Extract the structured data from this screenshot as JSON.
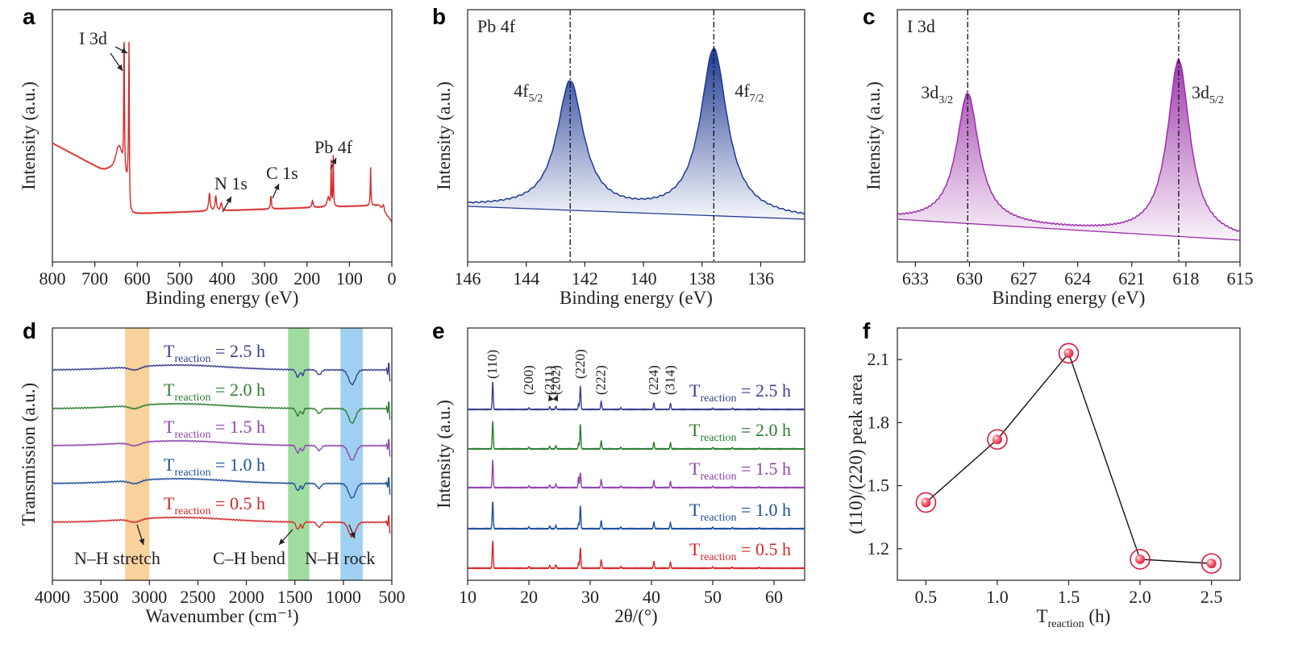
{
  "chart_data": [
    {
      "panel": "a",
      "type": "line",
      "xlabel": "Binding energy (eV)",
      "ylabel": "Intensity (a.u.)",
      "xlim": [
        800,
        0
      ],
      "x_ticks": [
        800,
        700,
        600,
        500,
        400,
        300,
        200,
        100,
        0
      ],
      "color": "#d62728",
      "annotations": [
        "I 3d",
        "N 1s",
        "C 1s",
        "Pb 4f"
      ],
      "peaks": [
        {
          "name": "I 3d",
          "x": [
            631,
            619
          ]
        },
        {
          "name": "N 1s",
          "x": 402
        },
        {
          "name": "C 1s",
          "x": 285
        },
        {
          "name": "Pb 4f",
          "x": [
            143,
            138
          ]
        }
      ]
    },
    {
      "panel": "b",
      "type": "line",
      "title": "Pb 4f",
      "xlabel": "Binding energy (eV)",
      "ylabel": "Intensity (a.u.)",
      "xlim": [
        146,
        134.5
      ],
      "x_ticks": [
        146,
        144,
        142,
        140,
        138,
        136
      ],
      "color": "#1f3a93",
      "peaks": [
        {
          "label_main": "4f",
          "label_sub": "5/2",
          "x": 142.5,
          "rel_height": 0.74
        },
        {
          "label_main": "4f",
          "label_sub": "7/2",
          "x": 137.6,
          "rel_height": 0.96
        }
      ]
    },
    {
      "panel": "c",
      "type": "line",
      "title": "I 3d",
      "xlabel": "Binding energy (eV)",
      "ylabel": "Intensity (a.u.)",
      "xlim": [
        634,
        615
      ],
      "x_ticks": [
        633,
        630,
        627,
        624,
        621,
        618,
        615
      ],
      "color": "#9b30a8",
      "peaks": [
        {
          "label_main": "3d",
          "label_sub": "3/2",
          "x": 630.1,
          "rel_height": 0.7
        },
        {
          "label_main": "3d",
          "label_sub": "5/2",
          "x": 618.4,
          "rel_height": 0.95
        }
      ]
    },
    {
      "panel": "d",
      "type": "line",
      "xlabel": "Wavenumber (cm⁻¹)",
      "ylabel": "Transmission (a.u.)",
      "xlim": [
        4000,
        500
      ],
      "x_ticks": [
        4000,
        3500,
        3000,
        2500,
        2000,
        1500,
        1000,
        500
      ],
      "bands": [
        {
          "name": "N–H stretch",
          "range": [
            3250,
            3000
          ],
          "color": "#f7c98a"
        },
        {
          "name": "C–H bend",
          "range": [
            1570,
            1350
          ],
          "color": "#8fd68f"
        },
        {
          "name": "N–H rock",
          "range": [
            1030,
            800
          ],
          "color": "#8fc8ee"
        }
      ],
      "series": [
        {
          "label_main": "T",
          "label_sub": "reaction",
          "label_value": " = 2.5 h",
          "color": "#3a3f8f"
        },
        {
          "label_main": "T",
          "label_sub": "reaction",
          "label_value": " = 2.0 h",
          "color": "#2e7d32"
        },
        {
          "label_main": "T",
          "label_sub": "reaction",
          "label_value": " = 1.5 h",
          "color": "#8e44ad"
        },
        {
          "label_main": "T",
          "label_sub": "reaction",
          "label_value": " = 1.0 h",
          "color": "#1f4e9c"
        },
        {
          "label_main": "T",
          "label_sub": "reaction",
          "label_value": " = 0.5 h",
          "color": "#d62728"
        }
      ]
    },
    {
      "panel": "e",
      "type": "line",
      "xlabel": "2θ/(°)",
      "ylabel": "Intensity (a.u.)",
      "xlim": [
        10,
        65
      ],
      "x_ticks": [
        10,
        20,
        30,
        40,
        50,
        60
      ],
      "hkl_labels": [
        {
          "label": "(110)",
          "x": 14.1
        },
        {
          "label": "(200)",
          "x": 20.0
        },
        {
          "label": "(211)",
          "x": 23.4
        },
        {
          "label": "(202)",
          "x": 24.4
        },
        {
          "label": "(220)",
          "x": 28.4
        },
        {
          "label": "(222)",
          "x": 31.8
        },
        {
          "label": "(224)",
          "x": 40.4
        },
        {
          "label": "(314)",
          "x": 43.1
        }
      ],
      "series": [
        {
          "label_main": "T",
          "label_sub": "reaction",
          "label_value": " = 2.5 h",
          "color": "#3a3f8f",
          "i110": 1.0,
          "i220": 0.85
        },
        {
          "label_main": "T",
          "label_sub": "reaction",
          "label_value": " = 2.0 h",
          "color": "#2e7d32",
          "i110": 1.0,
          "i220": 0.9
        },
        {
          "label_main": "T",
          "label_sub": "reaction",
          "label_value": " = 1.5 h",
          "color": "#8e44ad",
          "i110": 1.0,
          "i220": 0.55
        },
        {
          "label_main": "T",
          "label_sub": "reaction",
          "label_value": " = 1.0 h",
          "color": "#1f4e9c",
          "i110": 1.0,
          "i220": 0.85
        },
        {
          "label_main": "T",
          "label_sub": "reaction",
          "label_value": " = 0.5 h",
          "color": "#d62728",
          "i110": 1.0,
          "i220": 0.75
        }
      ]
    },
    {
      "panel": "f",
      "type": "scatter",
      "xlabel_main": "T",
      "xlabel_sub": "reaction",
      "xlabel_unit": " (h)",
      "ylabel": "(110)/(220) peak area",
      "xlim": [
        0.3,
        2.7
      ],
      "ylim": [
        1.05,
        2.25
      ],
      "x_ticks": [
        0.5,
        1.0,
        1.5,
        2.0,
        2.5
      ],
      "y_ticks": [
        1.2,
        1.5,
        1.8,
        2.1
      ],
      "x": [
        0.5,
        1.0,
        1.5,
        2.0,
        2.5
      ],
      "y": [
        1.42,
        1.72,
        2.13,
        1.15,
        1.13
      ]
    }
  ]
}
